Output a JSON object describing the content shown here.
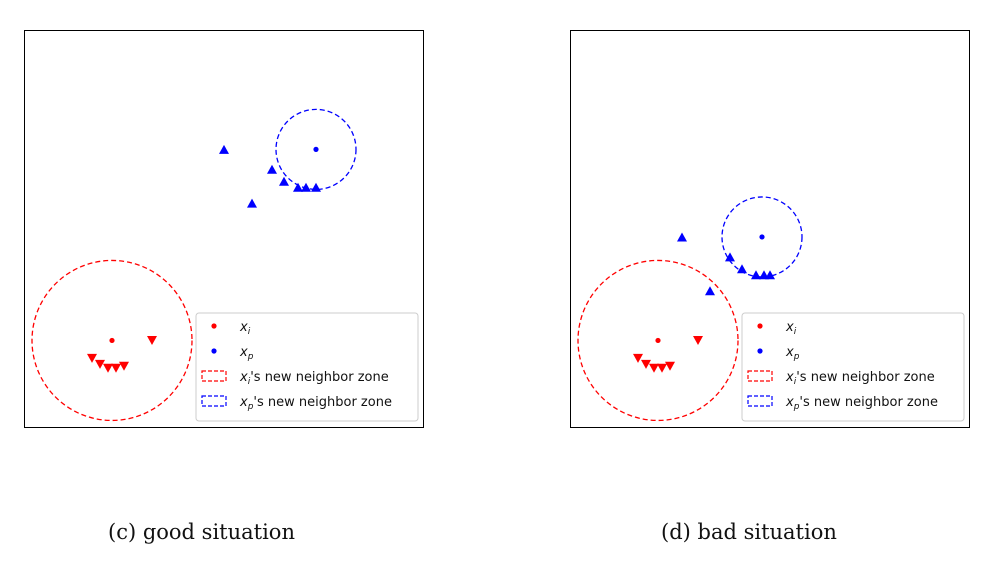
{
  "figures": [
    {
      "id": "c",
      "caption": "(c) good situation",
      "chart_data": {
        "type": "scatter",
        "axes_visible": false,
        "xlim": [
          0,
          10
        ],
        "ylim": [
          0,
          10
        ],
        "series": [
          {
            "name": "x_i",
            "marker": "circle",
            "color": "#ff0000",
            "points": [
              [
                2.2,
                2.2
              ]
            ]
          },
          {
            "name": "x_p",
            "marker": "circle",
            "color": "#0000ff",
            "points": [
              [
                7.3,
                7.0
              ]
            ]
          },
          {
            "name": "red neighbors",
            "marker": "triangle-down",
            "color": "#ff0000",
            "points": [
              [
                3.2,
                2.2
              ],
              [
                1.7,
                1.75
              ],
              [
                1.9,
                1.6
              ],
              [
                2.1,
                1.5
              ],
              [
                2.3,
                1.5
              ],
              [
                2.5,
                1.55
              ]
            ]
          },
          {
            "name": "blue neighbors",
            "marker": "triangle-up",
            "color": "#0000ff",
            "points": [
              [
                5.0,
                7.0
              ],
              [
                6.2,
                6.5
              ],
              [
                6.5,
                6.2
              ],
              [
                6.85,
                6.05
              ],
              [
                7.05,
                6.05
              ],
              [
                7.3,
                6.05
              ],
              [
                5.7,
                5.65
              ]
            ]
          }
        ],
        "zones": [
          {
            "name": "x_i's new neighbor zone",
            "color": "#ff0000",
            "style": "dashed",
            "center": [
              2.2,
              2.2
            ],
            "radius_data": 2.0
          },
          {
            "name": "x_p's new neighbor zone",
            "color": "#0000ff",
            "style": "dashed",
            "center": [
              7.3,
              7.0
            ],
            "radius_data": 1.0
          }
        ],
        "legend": {
          "placement": "lower-right",
          "entries": [
            {
              "marker": "dot",
              "color": "#ff0000",
              "math": "x",
              "sub": "i",
              "suffix": ""
            },
            {
              "marker": "dot",
              "color": "#0000ff",
              "math": "x",
              "sub": "p",
              "suffix": ""
            },
            {
              "marker": "dashed-box",
              "color": "#ff0000",
              "math": "x",
              "sub": "i",
              "suffix": "'s new neighbor zone"
            },
            {
              "marker": "dashed-box",
              "color": "#0000ff",
              "math": "x",
              "sub": "p",
              "suffix": "'s new neighbor zone"
            }
          ]
        }
      }
    },
    {
      "id": "d",
      "caption": "(d) bad situation",
      "chart_data": {
        "type": "scatter",
        "axes_visible": false,
        "xlim": [
          0,
          10
        ],
        "ylim": [
          0,
          10
        ],
        "series": [
          {
            "name": "x_i",
            "marker": "circle",
            "color": "#ff0000",
            "points": [
              [
                2.2,
                2.2
              ]
            ]
          },
          {
            "name": "x_p",
            "marker": "circle",
            "color": "#0000ff",
            "points": [
              [
                4.8,
                4.8
              ]
            ]
          },
          {
            "name": "red neighbors",
            "marker": "triangle-down",
            "color": "#ff0000",
            "points": [
              [
                3.2,
                2.2
              ],
              [
                1.7,
                1.75
              ],
              [
                1.9,
                1.6
              ],
              [
                2.1,
                1.5
              ],
              [
                2.3,
                1.5
              ],
              [
                2.5,
                1.55
              ]
            ]
          },
          {
            "name": "blue neighbors",
            "marker": "triangle-up",
            "color": "#0000ff",
            "points": [
              [
                2.8,
                4.8
              ],
              [
                4.0,
                4.3
              ],
              [
                4.3,
                4.0
              ],
              [
                4.65,
                3.85
              ],
              [
                4.85,
                3.85
              ],
              [
                5.0,
                3.85
              ],
              [
                3.5,
                3.45
              ]
            ]
          }
        ],
        "zones": [
          {
            "name": "x_i's new neighbor zone",
            "color": "#ff0000",
            "style": "dashed",
            "center": [
              2.2,
              2.2
            ],
            "radius_data": 2.0
          },
          {
            "name": "x_p's new neighbor zone",
            "color": "#0000ff",
            "style": "dashed",
            "center": [
              4.8,
              4.8
            ],
            "radius_data": 1.0
          }
        ],
        "legend": {
          "placement": "lower-right",
          "entries": [
            {
              "marker": "dot",
              "color": "#ff0000",
              "math": "x",
              "sub": "i",
              "suffix": ""
            },
            {
              "marker": "dot",
              "color": "#0000ff",
              "math": "x",
              "sub": "p",
              "suffix": ""
            },
            {
              "marker": "dashed-box",
              "color": "#ff0000",
              "math": "x",
              "sub": "i",
              "suffix": "'s new neighbor zone"
            },
            {
              "marker": "dashed-box",
              "color": "#0000ff",
              "math": "x",
              "sub": "p",
              "suffix": "'s new neighbor zone"
            }
          ]
        }
      }
    }
  ]
}
